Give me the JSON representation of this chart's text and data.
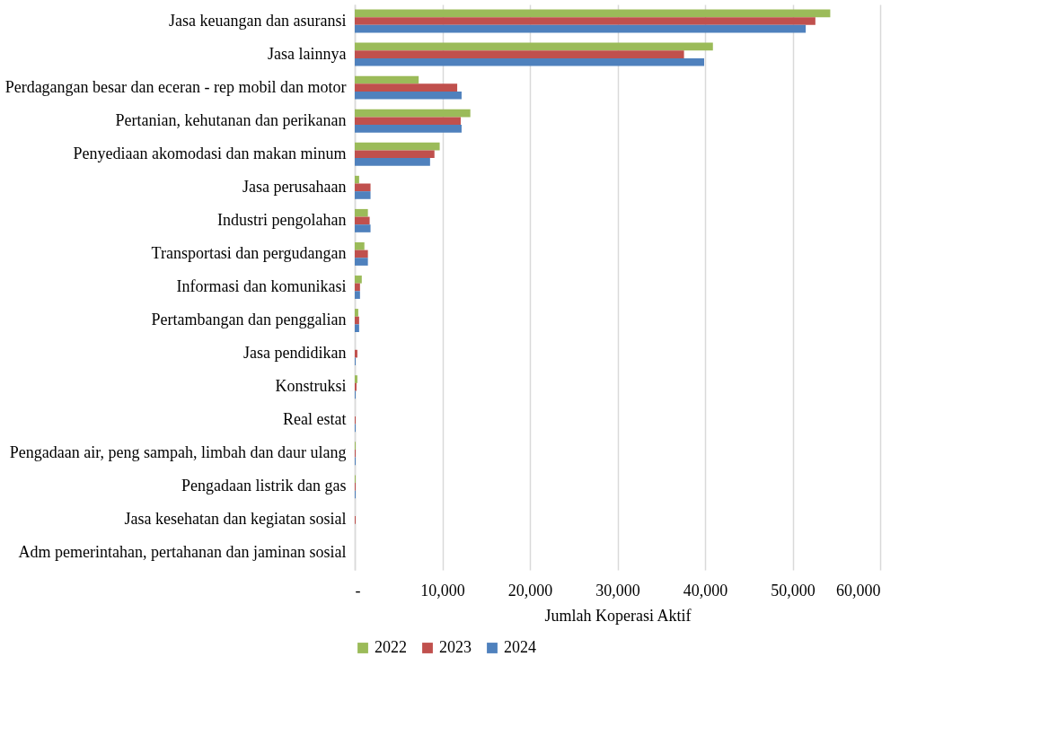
{
  "chart_data": {
    "type": "bar",
    "orientation": "horizontal",
    "xlabel": "Jumlah Koperasi Aktif",
    "categories": [
      "Jasa keuangan dan asuransi",
      "Jasa lainnya",
      "Perdagangan besar dan eceran - rep mobil dan motor",
      "Pertanian, kehutanan dan perikanan",
      "Penyediaan akomodasi dan makan minum",
      "Jasa perusahaan",
      "Industri pengolahan",
      "Transportasi dan pergudangan",
      "Informasi dan komunikasi",
      "Pertambangan dan penggalian",
      "Jasa pendidikan",
      "Konstruksi",
      "Real estat",
      "Pengadaan air, peng sampah, limbah dan daur ulang",
      "Pengadaan listrik dan gas",
      "Jasa kesehatan dan kegiatan sosial",
      "Adm pemerintahan,  pertahanan dan jaminan sosial"
    ],
    "series": [
      {
        "name": "2022",
        "color": "#9bbb59",
        "values": [
          54300,
          40900,
          7300,
          13200,
          9700,
          500,
          1500,
          1100,
          800,
          400,
          0,
          300,
          0,
          100,
          100,
          0,
          0
        ]
      },
      {
        "name": "2023",
        "color": "#c0504d",
        "values": [
          52600,
          37600,
          11700,
          12100,
          9100,
          1800,
          1700,
          1500,
          600,
          500,
          300,
          200,
          100,
          100,
          100,
          100,
          0
        ]
      },
      {
        "name": "2024",
        "color": "#4f81bd",
        "values": [
          51500,
          39900,
          12200,
          12200,
          8600,
          1800,
          1800,
          1500,
          600,
          500,
          100,
          100,
          100,
          100,
          100,
          0,
          0
        ]
      }
    ],
    "xlim": [
      0,
      60000
    ],
    "xticks": [
      {
        "value": 0,
        "label": "-"
      },
      {
        "value": 10000,
        "label": "10,000"
      },
      {
        "value": 20000,
        "label": "20,000"
      },
      {
        "value": 30000,
        "label": "30,000"
      },
      {
        "value": 40000,
        "label": "40,000"
      },
      {
        "value": 50000,
        "label": "50,000"
      },
      {
        "value": 60000,
        "label": "60,000"
      }
    ],
    "grid": "x",
    "legend": "bottom"
  }
}
